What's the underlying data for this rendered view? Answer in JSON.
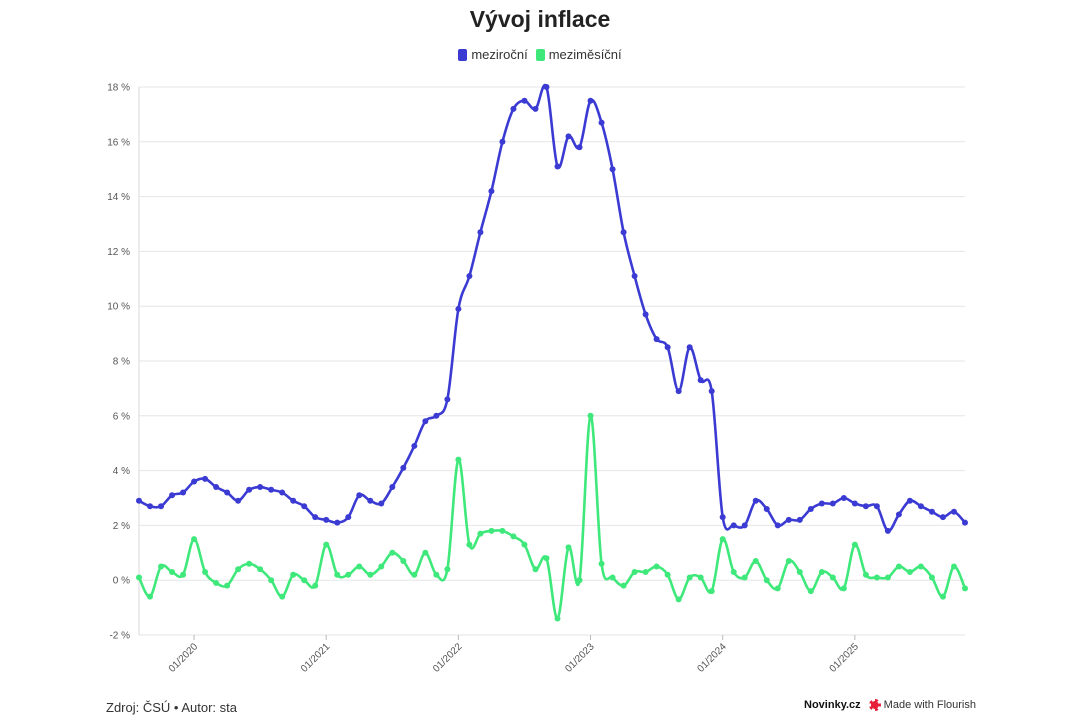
{
  "chart_data": {
    "type": "line",
    "title": "Vývoj inflace",
    "xlabel": "",
    "ylabel": "",
    "ylim": [
      -2,
      18
    ],
    "yticks": [
      "-2 %",
      "0 %",
      "2 %",
      "4 %",
      "6 %",
      "8 %",
      "10 %",
      "12 %",
      "14 %",
      "16 %",
      "18 %"
    ],
    "ytick_values": [
      -2,
      0,
      2,
      4,
      6,
      8,
      10,
      12,
      14,
      16,
      18
    ],
    "xticks": [
      "01/2020",
      "01/2021",
      "01/2022",
      "01/2023",
      "01/2024",
      "01/2025"
    ],
    "xtick_dates": [
      "2020-01",
      "2021-01",
      "2022-01",
      "2023-01",
      "2024-01",
      "2025-01"
    ],
    "grid": true,
    "legend_position": "top-center",
    "x_start": "2019-08",
    "series": [
      {
        "name": "meziroční",
        "color": "#3b3bd4",
        "values": [
          2.9,
          2.7,
          2.7,
          3.1,
          3.2,
          3.6,
          3.7,
          3.4,
          3.2,
          2.9,
          3.3,
          3.4,
          3.3,
          3.2,
          2.9,
          2.7,
          2.3,
          2.2,
          2.1,
          2.3,
          3.1,
          2.9,
          2.8,
          3.4,
          4.1,
          4.9,
          5.8,
          6.0,
          6.6,
          9.9,
          11.1,
          12.7,
          14.2,
          16.0,
          17.2,
          17.5,
          17.2,
          18.0,
          15.1,
          16.2,
          15.8,
          17.5,
          16.7,
          15.0,
          12.7,
          11.1,
          9.7,
          8.8,
          8.5,
          6.9,
          8.5,
          7.3,
          6.9,
          2.3,
          2.0,
          2.0,
          2.9,
          2.6,
          2.0,
          2.2,
          2.2,
          2.6,
          2.8,
          2.8,
          3.0,
          2.8,
          2.7,
          2.7,
          1.8,
          2.4,
          2.9,
          2.7,
          2.5,
          2.3,
          2.5,
          2.1
        ]
      },
      {
        "name": "meziměsíční",
        "color": "#3ee87a",
        "values": [
          0.1,
          -0.6,
          0.5,
          0.3,
          0.2,
          1.5,
          0.3,
          -0.1,
          -0.2,
          0.4,
          0.6,
          0.4,
          0.0,
          -0.6,
          0.2,
          0.0,
          -0.2,
          1.3,
          0.2,
          0.2,
          0.5,
          0.2,
          0.5,
          1.0,
          0.7,
          0.2,
          1.0,
          0.2,
          0.4,
          4.4,
          1.3,
          1.7,
          1.8,
          1.8,
          1.6,
          1.3,
          0.4,
          0.8,
          -1.4,
          1.2,
          0.0,
          6.0,
          0.6,
          0.1,
          -0.2,
          0.3,
          0.3,
          0.5,
          0.2,
          -0.7,
          0.1,
          0.1,
          -0.4,
          1.5,
          0.3,
          0.1,
          0.7,
          0.0,
          -0.3,
          0.7,
          0.3,
          -0.4,
          0.3,
          0.1,
          -0.3,
          1.3,
          0.2,
          0.1,
          0.1,
          0.5,
          0.3,
          0.5,
          0.1,
          -0.6,
          0.5,
          -0.3
        ]
      }
    ]
  },
  "footer": {
    "source": "Zdroj: ČSÚ • Autor: sta",
    "brand": "Novinky.cz",
    "flourish": "Made with Flourish"
  }
}
